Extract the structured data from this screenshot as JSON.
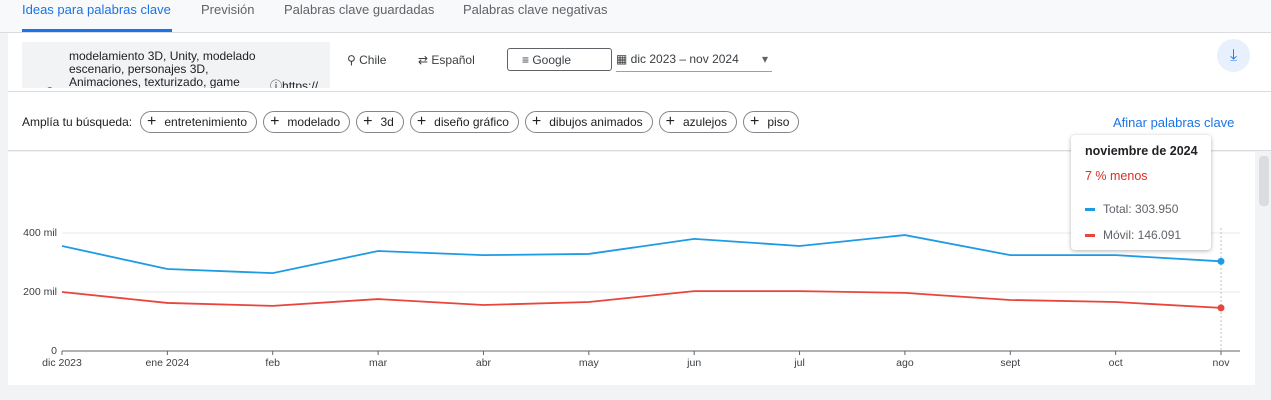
{
  "tabs": [
    "Ideas para palabras clave",
    "Previsión",
    "Palabras clave guardadas",
    "Palabras clave negativas"
  ],
  "search": {
    "keyword_lines": [
      "modelamiento 3D, Unity, modelado",
      "escenario, personajes 3D,",
      "Animaciones, texturizado, game"
    ],
    "url": "https://"
  },
  "location": "Chile",
  "language": "Español",
  "network": "Google",
  "date_range": "dic 2023 – nov 2024",
  "broaden": {
    "label": "Amplía tu búsqueda:",
    "chips": [
      "entretenimiento",
      "modelado",
      "3d",
      "diseño gráfico",
      "dibujos animados",
      "azulejos",
      "piso"
    ]
  },
  "refine": "Afinar palabras clave",
  "chart_data": {
    "type": "line",
    "categories": [
      "dic 2023",
      "ene 2024",
      "feb",
      "mar",
      "abr",
      "may",
      "jun",
      "jul",
      "ago",
      "sept",
      "oct",
      "nov"
    ],
    "series": [
      {
        "name": "Total",
        "color": "#1e9be4",
        "values": [
          356000,
          278000,
          264000,
          339000,
          325000,
          329000,
          380000,
          356000,
          393000,
          325000,
          325000,
          303950
        ]
      },
      {
        "name": "Móvil",
        "color": "#e8453c",
        "values": [
          200000,
          163000,
          153000,
          176000,
          156000,
          166000,
          203000,
          203000,
          197000,
          173000,
          166000,
          146091
        ]
      }
    ],
    "ylim": [
      0,
      400000
    ],
    "yticks": [
      0,
      {
        "value": 200000,
        "label": "200 mil"
      },
      {
        "value": 400000,
        "label": "400 mil"
      }
    ],
    "grid": true,
    "tooltip": {
      "title": "noviembre de 2024",
      "change": "7 % menos",
      "entries": [
        "Total: 303.950",
        "Móvil: 146.091"
      ]
    }
  }
}
